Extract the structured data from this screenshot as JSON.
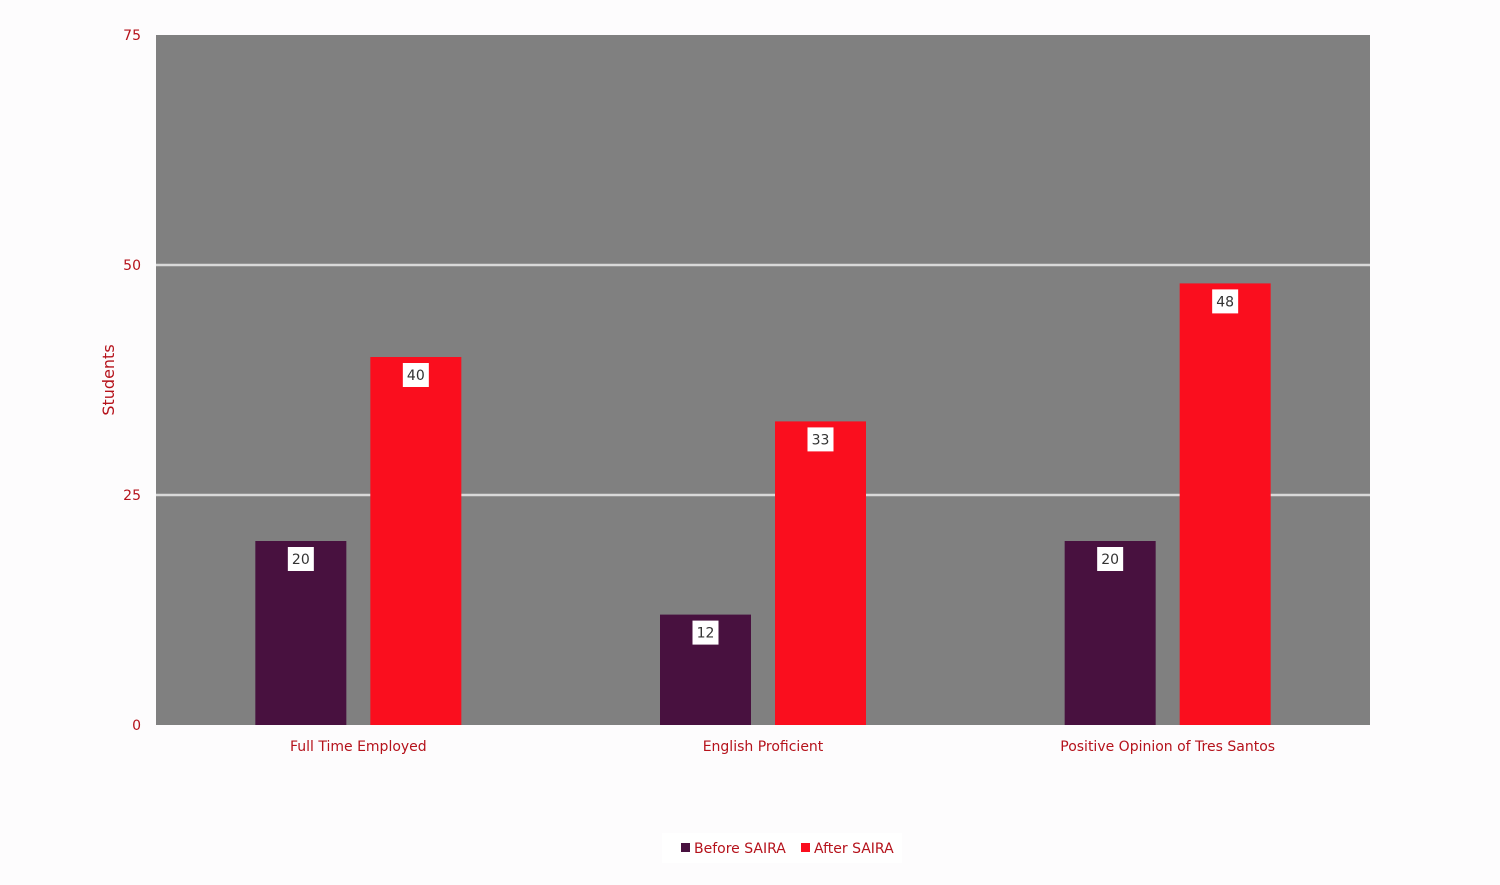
{
  "chart_data": {
    "type": "bar",
    "categories": [
      "Full Time Employed",
      "English Proficient",
      "Positive Opinion of Tres Santos"
    ],
    "series": [
      {
        "name": "Before SAIRA",
        "values": [
          20,
          12,
          20
        ],
        "color": "#48113f"
      },
      {
        "name": "After SAIRA",
        "values": [
          40,
          33,
          48
        ],
        "color": "#fa0e1e"
      }
    ],
    "ylabel": "Students",
    "xlabel": "",
    "ylim": [
      0,
      75
    ],
    "yticks": [
      0,
      25,
      50,
      75
    ],
    "grid": true,
    "legend_position": "bottom",
    "plot_background": "#808080",
    "gridline_color": "#d9d9d9",
    "text_color": "#b5121b"
  }
}
